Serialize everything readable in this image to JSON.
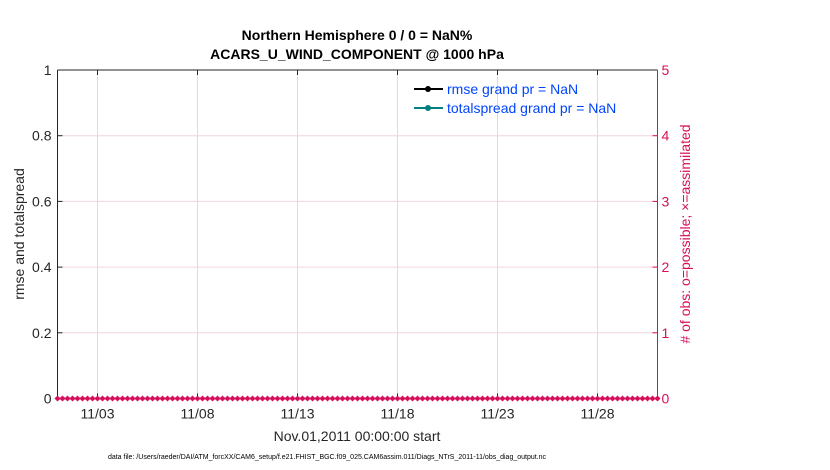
{
  "chart_data": {
    "type": "line",
    "title": [
      "Northern Hemisphere 0 / 0 = NaN%",
      "ACARS_U_WIND_COMPONENT @ 1000 hPa"
    ],
    "xlabel": "Nov.01,2011 00:00:00 start",
    "ylabel": "rmse and totalspread",
    "y2label": "# of obs: o=possible; ×=assimilated",
    "xlim": [
      "2011-11-01",
      "2011-12-01"
    ],
    "ylim": [
      0,
      1
    ],
    "y2lim": [
      0,
      5
    ],
    "xticks": [
      "11/03",
      "11/08",
      "11/13",
      "11/18",
      "11/23",
      "11/28"
    ],
    "xtick_days": [
      2,
      7,
      12,
      17,
      22,
      27
    ],
    "yticks": [
      "0",
      "0.2",
      "0.4",
      "0.6",
      "0.8",
      "1"
    ],
    "y2ticks": [
      "0",
      "1",
      "2",
      "3",
      "4",
      "5"
    ],
    "grid": true,
    "legend_position": "top-right",
    "series": [
      {
        "name": "rmse grand pr = NaN",
        "color": "#000000",
        "values": []
      },
      {
        "name": "totalspread grand pr = NaN",
        "color": "#008080",
        "values": []
      },
      {
        "axis": "right",
        "color": "#d6105a",
        "interval_hours": 6,
        "value": 0
      }
    ],
    "footnote": "data file: /Users/raeder/DAI/ATM_forcXX/CAM6_setup/f.e21.FHIST_BGC.f09_025.CAM6assim.011/Diags_NTrS_2011-11/obs_diag_output.nc"
  }
}
